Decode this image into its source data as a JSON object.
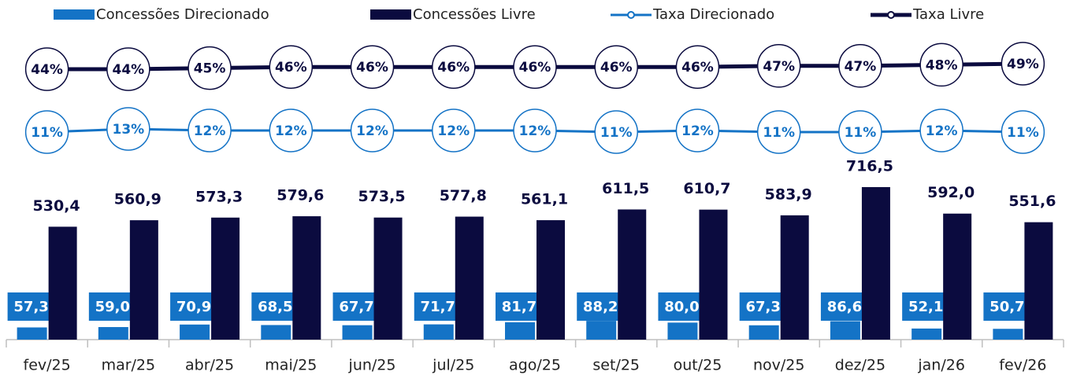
{
  "chart_data": {
    "type": "bar",
    "categories": [
      "fev/25",
      "mar/25",
      "abr/25",
      "mai/25",
      "jun/25",
      "jul/25",
      "ago/25",
      "set/25",
      "out/25",
      "nov/25",
      "dez/25",
      "jan/26",
      "fev/26"
    ],
    "series": [
      {
        "name": "Concessões Direcionado",
        "type": "bar",
        "color": "#1473c6",
        "values": [
          57.3,
          59.0,
          70.9,
          68.5,
          67.7,
          71.7,
          81.7,
          88.2,
          80.0,
          67.3,
          86.6,
          52.1,
          50.7
        ],
        "value_labels": [
          "57,3",
          "59,0",
          "70,9",
          "68,5",
          "67,7",
          "71,7",
          "81,7",
          "88,2",
          "80,0",
          "67,3",
          "86,6",
          "52,1",
          "50,7"
        ]
      },
      {
        "name": "Concessões Livre",
        "type": "bar",
        "color": "#0b0b3f",
        "values": [
          530.4,
          560.9,
          573.3,
          579.6,
          573.5,
          577.8,
          561.1,
          611.5,
          610.7,
          583.9,
          716.5,
          592.0,
          551.6
        ],
        "value_labels": [
          "530,4",
          "560,9",
          "573,3",
          "579,6",
          "573,5",
          "577,8",
          "561,1",
          "611,5",
          "610,7",
          "583,9",
          "716,5",
          "592,0",
          "551,6"
        ]
      },
      {
        "name": "Taxa Direcionado",
        "type": "line",
        "color": "#1473c6",
        "values": [
          11,
          13,
          12,
          12,
          12,
          12,
          12,
          11,
          12,
          11,
          11,
          12,
          11
        ],
        "value_labels": [
          "11%",
          "13%",
          "12%",
          "12%",
          "12%",
          "12%",
          "12%",
          "11%",
          "12%",
          "11%",
          "11%",
          "12%",
          "11%"
        ]
      },
      {
        "name": "Taxa Livre",
        "type": "line",
        "color": "#0b0b3f",
        "values": [
          44,
          44,
          45,
          46,
          46,
          46,
          46,
          46,
          46,
          47,
          47,
          48,
          49
        ],
        "value_labels": [
          "44%",
          "44%",
          "45%",
          "46%",
          "46%",
          "46%",
          "46%",
          "46%",
          "46%",
          "47%",
          "47%",
          "48%",
          "49%"
        ]
      }
    ]
  }
}
